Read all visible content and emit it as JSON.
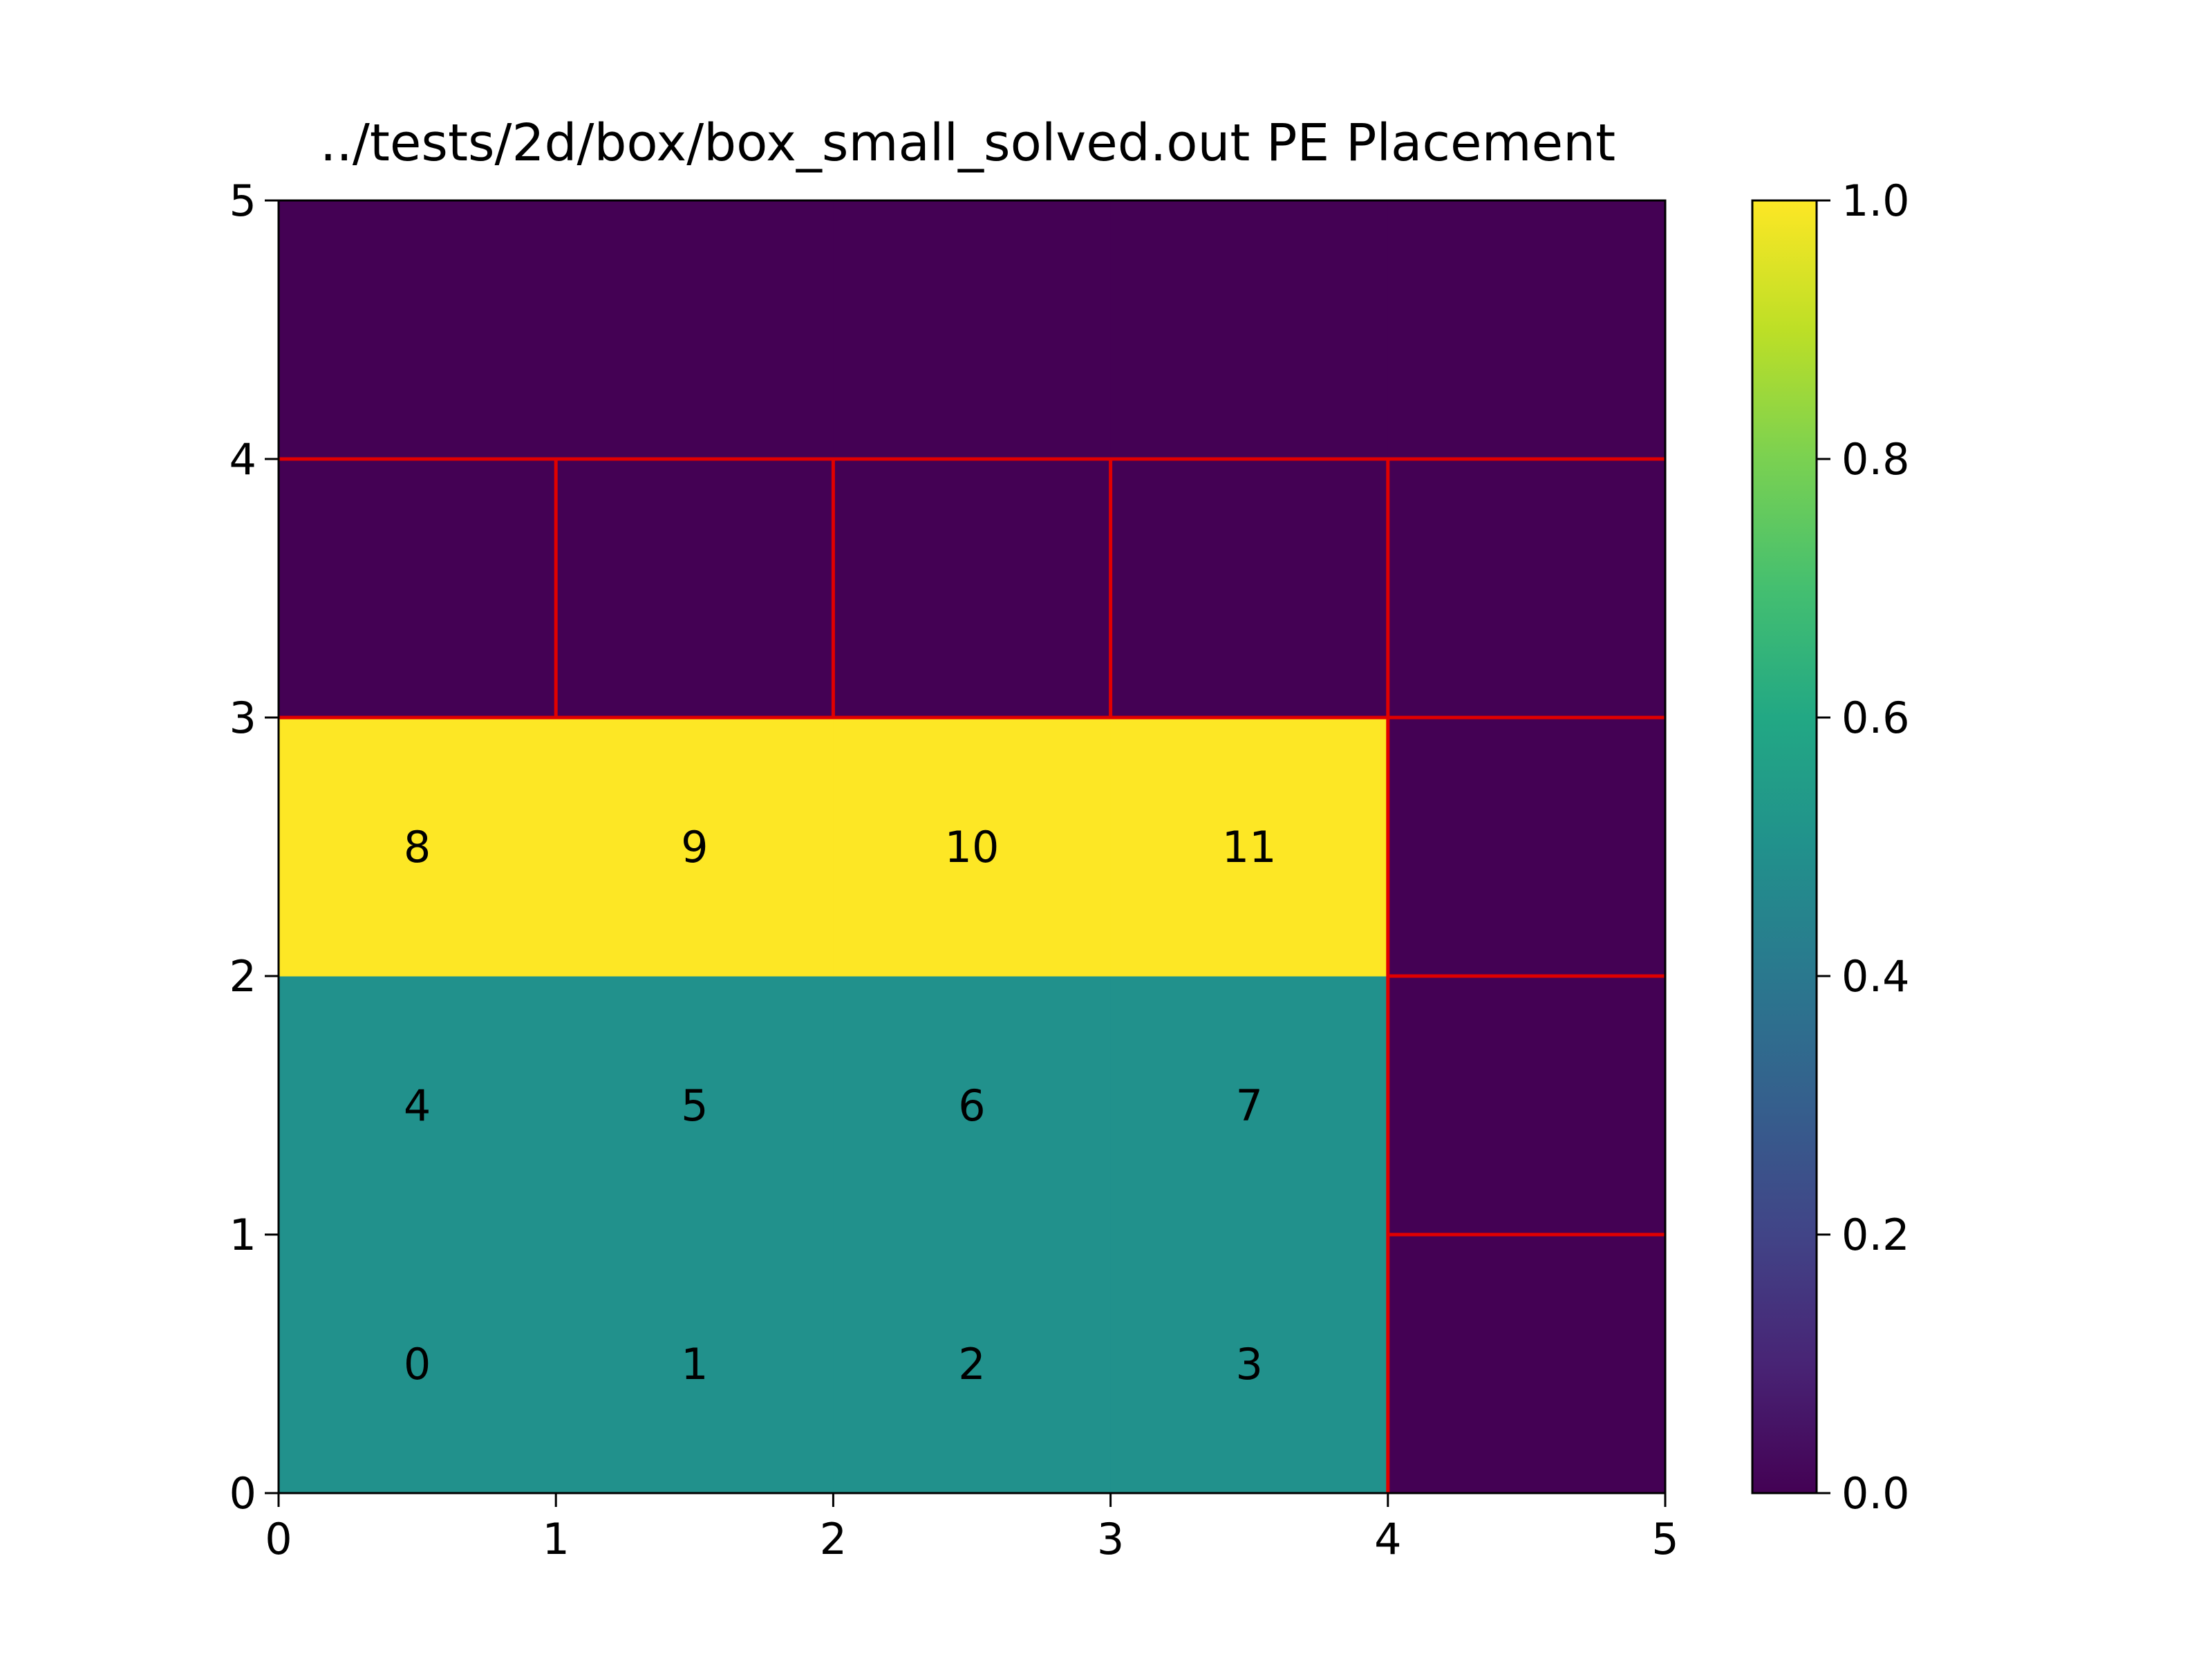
{
  "chart_data": {
    "type": "heatmap",
    "title": "../tests/2d/box/box_small_solved.out PE Placement",
    "xlabel": "",
    "ylabel": "",
    "xlim": [
      0,
      5
    ],
    "ylim": [
      0,
      5
    ],
    "x_ticks": [
      "0",
      "1",
      "2",
      "3",
      "4",
      "5"
    ],
    "y_ticks": [
      "0",
      "1",
      "2",
      "3",
      "4",
      "5"
    ],
    "grid": false,
    "colormap": "viridis",
    "colorbar": {
      "min": 0.0,
      "max": 1.0,
      "ticks": [
        "0.0",
        "0.2",
        "0.4",
        "0.6",
        "0.8",
        "1.0"
      ]
    },
    "rows_bottom_to_top": [
      [
        0.5,
        0.5,
        0.5,
        0.5,
        0.0
      ],
      [
        0.5,
        0.5,
        0.5,
        0.5,
        0.0
      ],
      [
        1.0,
        1.0,
        1.0,
        1.0,
        0.0
      ],
      [
        0.0,
        0.0,
        0.0,
        0.0,
        0.0
      ],
      [
        0.0,
        0.0,
        0.0,
        0.0,
        0.0
      ]
    ],
    "cell_labels": [
      {
        "x": 0.5,
        "y": 0.5,
        "text": "0"
      },
      {
        "x": 1.5,
        "y": 0.5,
        "text": "1"
      },
      {
        "x": 2.5,
        "y": 0.5,
        "text": "2"
      },
      {
        "x": 3.5,
        "y": 0.5,
        "text": "3"
      },
      {
        "x": 0.5,
        "y": 1.5,
        "text": "4"
      },
      {
        "x": 1.5,
        "y": 1.5,
        "text": "5"
      },
      {
        "x": 2.5,
        "y": 1.5,
        "text": "6"
      },
      {
        "x": 3.5,
        "y": 1.5,
        "text": "7"
      },
      {
        "x": 0.5,
        "y": 2.5,
        "text": "8"
      },
      {
        "x": 1.5,
        "y": 2.5,
        "text": "9"
      },
      {
        "x": 2.5,
        "y": 2.5,
        "text": "10"
      },
      {
        "x": 3.5,
        "y": 2.5,
        "text": "11"
      }
    ],
    "partition_lines": [
      {
        "x1": 0,
        "y1": 4,
        "x2": 5,
        "y2": 4
      },
      {
        "x1": 0,
        "y1": 3,
        "x2": 5,
        "y2": 3
      },
      {
        "x1": 1,
        "y1": 3,
        "x2": 1,
        "y2": 4
      },
      {
        "x1": 2,
        "y1": 3,
        "x2": 2,
        "y2": 4
      },
      {
        "x1": 3,
        "y1": 3,
        "x2": 3,
        "y2": 4
      },
      {
        "x1": 4,
        "y1": 0,
        "x2": 4,
        "y2": 4
      },
      {
        "x1": 4,
        "y1": 2,
        "x2": 5,
        "y2": 2
      },
      {
        "x1": 4,
        "y1": 1,
        "x2": 5,
        "y2": 1
      }
    ],
    "partition_line_color": "#e00000",
    "colors": {
      "low": "#440154",
      "mid": "#21918c",
      "high": "#fde725"
    }
  }
}
